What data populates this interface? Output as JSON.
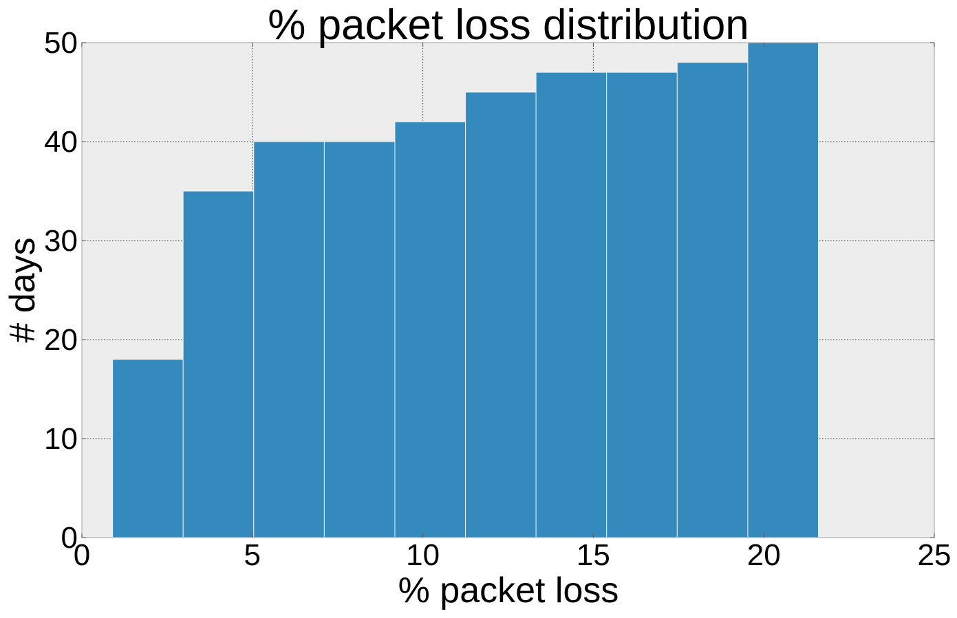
{
  "chart_data": {
    "type": "bar",
    "title": "% packet loss distribution",
    "xlabel": "% packet loss",
    "ylabel": "# days",
    "xlim": [
      0,
      25
    ],
    "ylim": [
      0,
      50
    ],
    "xticks": [
      0,
      5,
      10,
      15,
      20,
      25
    ],
    "xtick_labels": [
      "0",
      "5",
      "10",
      "15",
      "20",
      "25"
    ],
    "yticks": [
      0,
      10,
      20,
      30,
      40,
      50
    ],
    "ytick_labels": [
      "0",
      "10",
      "20",
      "30",
      "40",
      "50"
    ],
    "grid": true,
    "bins": [
      {
        "x_start": 0.9,
        "x_end": 2.97,
        "value": 18
      },
      {
        "x_start": 2.97,
        "x_end": 5.04,
        "value": 35
      },
      {
        "x_start": 5.04,
        "x_end": 7.11,
        "value": 40
      },
      {
        "x_start": 7.11,
        "x_end": 9.18,
        "value": 40
      },
      {
        "x_start": 9.18,
        "x_end": 11.25,
        "value": 42
      },
      {
        "x_start": 11.25,
        "x_end": 13.32,
        "value": 45
      },
      {
        "x_start": 13.32,
        "x_end": 15.39,
        "value": 47
      },
      {
        "x_start": 15.39,
        "x_end": 17.46,
        "value": 47
      },
      {
        "x_start": 17.46,
        "x_end": 19.53,
        "value": 48
      },
      {
        "x_start": 19.53,
        "x_end": 21.6,
        "value": 50
      }
    ],
    "bar_color": "#348abd",
    "bar_edge_color": "#eeeeee",
    "plot_background": "#ededed",
    "frame_color": "#bcbcbc",
    "grid_color": "#333333"
  }
}
